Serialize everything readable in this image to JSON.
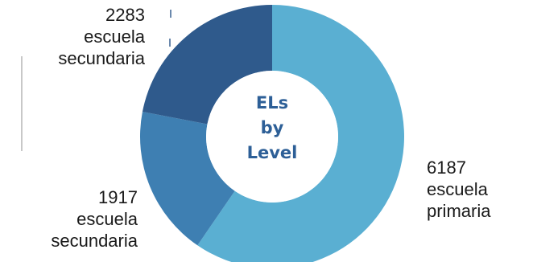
{
  "chart_data": {
    "type": "pie",
    "donut": true,
    "center_label": [
      "ELs",
      "by",
      "Level"
    ],
    "slices": [
      {
        "value": 6187,
        "label": [
          "6187",
          "escuela",
          "primaria"
        ],
        "color": "#5aafd2"
      },
      {
        "value": 1917,
        "label": [
          "1917",
          "escuela",
          "secundaria"
        ],
        "color": "#3e7fb2"
      },
      {
        "value": 2283,
        "label": [
          "2283",
          "escuela",
          "secundaria"
        ],
        "color": "#2f5a8c"
      }
    ],
    "start": "top",
    "direction": "clockwise",
    "legend": false
  }
}
